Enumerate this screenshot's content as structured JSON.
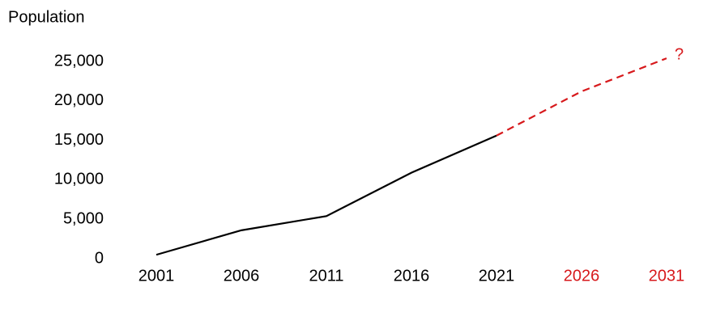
{
  "chart_data": {
    "type": "line",
    "y_label": "Population",
    "categories": [
      "2001",
      "2006",
      "2011",
      "2016",
      "2021",
      "2026",
      "2031"
    ],
    "category_colors": [
      "#000000",
      "#000000",
      "#000000",
      "#000000",
      "#000000",
      "#d7191c",
      "#d7191c"
    ],
    "series": [
      {
        "color": "#000000",
        "dashed": false,
        "values": [
          500,
          3600,
          5400,
          10900,
          15600,
          null,
          null
        ]
      },
      {
        "color": "#d7191c",
        "dashed": true,
        "values": [
          null,
          null,
          null,
          null,
          15600,
          21200,
          25400
        ]
      }
    ],
    "annotations": [
      {
        "text": "?",
        "series": 1,
        "index": 6,
        "color": "#d7191c"
      }
    ],
    "ylim": [
      0,
      26000
    ],
    "yticks": [
      0,
      {
        "value": 5000,
        "label": "5,000"
      },
      {
        "value": 10000,
        "label": "10,000"
      },
      {
        "value": 15000,
        "label": "15,000"
      },
      {
        "value": 20000,
        "label": "20,000"
      },
      {
        "value": 25000,
        "label": "25,000"
      }
    ],
    "grid": false
  }
}
